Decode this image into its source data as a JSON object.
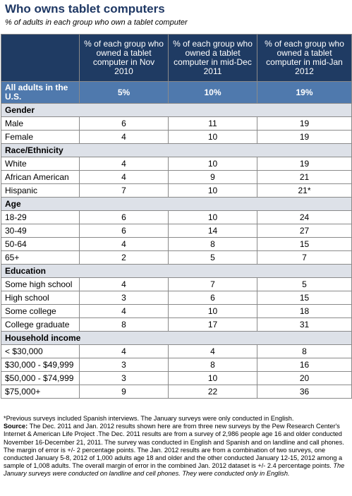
{
  "header": {
    "title": "Who owns tablet computers",
    "subtitle": "% of adults in each group who own a tablet computer"
  },
  "table": {
    "columns": [
      "% of each group who owned a tablet computer in Nov 2010",
      "% of each group who owned a tablet computer in mid-Dec 2011",
      "% of each group who owned a tablet computer in mid-Jan 2012"
    ],
    "total": {
      "label": "All adults in the U.S.",
      "values": [
        "5%",
        "10%",
        "19%"
      ]
    },
    "sections": [
      {
        "title": "Gender",
        "rows": [
          [
            "Male",
            6,
            11,
            19
          ],
          [
            "Female",
            4,
            10,
            19
          ]
        ]
      },
      {
        "title": "Race/Ethnicity",
        "rows": [
          [
            "White",
            4,
            10,
            19
          ],
          [
            "African American",
            4,
            9,
            21
          ],
          [
            "Hispanic",
            7,
            10,
            "21*"
          ]
        ]
      },
      {
        "title": "Age",
        "rows": [
          [
            "18-29",
            6,
            10,
            24
          ],
          [
            "30-49",
            6,
            14,
            27
          ],
          [
            "50-64",
            4,
            8,
            15
          ],
          [
            "65+",
            2,
            5,
            7
          ]
        ]
      },
      {
        "title": "Education",
        "rows": [
          [
            "Some high school",
            4,
            7,
            5
          ],
          [
            "High school",
            3,
            6,
            15
          ],
          [
            "Some college",
            4,
            10,
            18
          ],
          [
            "College graduate",
            8,
            17,
            31
          ]
        ]
      },
      {
        "title": "Household income",
        "rows": [
          [
            "< $30,000",
            4,
            4,
            8
          ],
          [
            "$30,000 - $49,999",
            3,
            8,
            16
          ],
          [
            "$50,000 - $74,999",
            3,
            10,
            20
          ],
          [
            "$75,000+",
            9,
            22,
            36
          ]
        ]
      }
    ]
  },
  "notes": {
    "footnote": "*Previous surveys included Spanish interviews. The January surveys were only conducted in English.",
    "source_label": "Source:",
    "source_text": "The Dec. 2011 and Jan. 2012 results shown here are from three new surveys by the Pew Research Center's Internet & American Life Project .The Dec. 2011 results are from a survey of 2,986 people age 16 and older conducted November 16-December 21, 2011. The survey was conducted in English and Spanish and on landline and call phones. The margin of error is +/- 2 percentage points. The Jan. 2012 results are from a combination of two surveys, one conducted January 5-8, 2012 of 1,000 adults age 18 and older and the other conducted January 12-15, 2012 among a sample of 1,008 adults. The overall margin of error in the combined Jan. 2012 dataset is +/- 2.4 percentage points.",
    "source_italic": "The January surveys were conducted on landline and cell phones. They were conducted only in English."
  }
}
